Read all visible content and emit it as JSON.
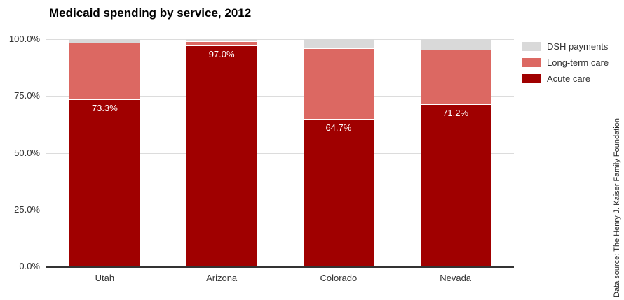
{
  "chart_data": {
    "type": "bar",
    "variant": "stacked-100-percent",
    "title": "Medicaid spending by service, 2012",
    "categories": [
      "Utah",
      "Arizona",
      "Colorado",
      "Nevada"
    ],
    "series": [
      {
        "name": "Acute care",
        "color": "#a00000",
        "values": [
          73.3,
          97.0,
          64.7,
          71.2
        ],
        "data_labels": [
          "73.3%",
          "97.0%",
          "64.7%",
          "71.2%"
        ]
      },
      {
        "name": "Long-term care",
        "color": "#dc6862",
        "values": [
          25.0,
          1.8,
          30.9,
          23.9
        ],
        "data_labels": null
      },
      {
        "name": "DSH payments",
        "color": "#d9d9d9",
        "values": [
          1.7,
          1.2,
          4.4,
          4.9
        ],
        "data_labels": null
      }
    ],
    "y_ticks": [
      {
        "value": 0,
        "label": "0.0%"
      },
      {
        "value": 25,
        "label": "25.0%"
      },
      {
        "value": 50,
        "label": "50.0%"
      },
      {
        "value": 75,
        "label": "75.0%"
      },
      {
        "value": 100,
        "label": "100.0%"
      }
    ],
    "ylim": [
      0,
      100
    ],
    "grid": true,
    "legend_position": "right",
    "legend": [
      {
        "name": "DSH payments",
        "color": "#d9d9d9"
      },
      {
        "name": "Long-term care",
        "color": "#dc6862"
      },
      {
        "name": "Acute care",
        "color": "#a00000"
      }
    ],
    "source_note": "Data source: The Henry J. Kaiser Family Foundation",
    "colors": {
      "acute_care": "#a00000",
      "long_term_care": "#dc6862",
      "dsh_payments": "#d9d9d9",
      "gridline": "#dcdcdc",
      "axis_line": "#333333",
      "text": "#333333"
    }
  }
}
